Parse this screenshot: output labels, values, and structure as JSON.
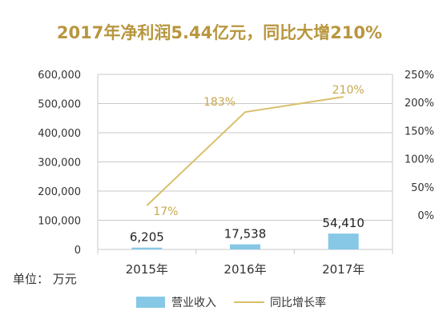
{
  "chart_data": {
    "type": "bar",
    "title": "2017年净利润5.44亿元，同比大增210%",
    "categories": [
      "2015年",
      "2016年",
      "2017年"
    ],
    "series": [
      {
        "name": "营业收入",
        "kind": "bar",
        "axis": "left",
        "values": [
          6205,
          17538,
          54410
        ],
        "labels": [
          "6,205",
          "17,538",
          "54,410"
        ]
      },
      {
        "name": "同比增长率",
        "kind": "line",
        "axis": "right",
        "values": [
          17,
          183,
          210
        ],
        "labels": [
          "17%",
          "183%",
          "210%"
        ]
      }
    ],
    "left_axis": {
      "unit_label": "单位： 万元",
      "ylim": [
        0,
        600000
      ],
      "ticks": [
        0,
        100000,
        200000,
        300000,
        400000,
        500000,
        600000
      ],
      "tick_labels": [
        "0",
        "100,000",
        "200,000",
        "300,000",
        "400,000",
        "500,000",
        "600,000"
      ]
    },
    "right_axis": {
      "ticks": [
        0,
        50,
        100,
        150,
        200,
        250
      ],
      "tick_labels": [
        "0%",
        "50%",
        "100%",
        "150%",
        "200%",
        "250%"
      ]
    },
    "grid": true,
    "legend": "bottom",
    "colors": {
      "bar": "#87c8e6",
      "line": "#d9bf6a",
      "title": "#b8963e",
      "grid": "#c8c8c8"
    }
  }
}
